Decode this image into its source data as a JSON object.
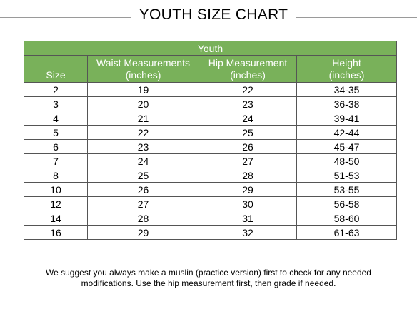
{
  "title": "YOUTH SIZE CHART",
  "table": {
    "group_header": "Youth",
    "columns": [
      {
        "line1": "",
        "line2": "Size"
      },
      {
        "line1": "Waist Measurements",
        "line2": "(inches)"
      },
      {
        "line1": "Hip Measurement",
        "line2": "(inches)"
      },
      {
        "line1": "Height",
        "line2": "(inches)"
      }
    ],
    "rows": [
      [
        "2",
        "19",
        "22",
        "34-35"
      ],
      [
        "3",
        "20",
        "23",
        "36-38"
      ],
      [
        "4",
        "21",
        "24",
        "39-41"
      ],
      [
        "5",
        "22",
        "25",
        "42-44"
      ],
      [
        "6",
        "23",
        "26",
        "45-47"
      ],
      [
        "7",
        "24",
        "27",
        "48-50"
      ],
      [
        "8",
        "25",
        "28",
        "51-53"
      ],
      [
        "10",
        "26",
        "29",
        "53-55"
      ],
      [
        "12",
        "27",
        "30",
        "56-58"
      ],
      [
        "14",
        "28",
        "31",
        "58-60"
      ],
      [
        "16",
        "29",
        "32",
        "61-63"
      ]
    ],
    "header_color": "#79b15a"
  },
  "note": {
    "line1": "We suggest you always make a muslin (practice version) first to check for any needed",
    "line2": "modifications.  Use the hip measurement first, then grade if needed."
  }
}
